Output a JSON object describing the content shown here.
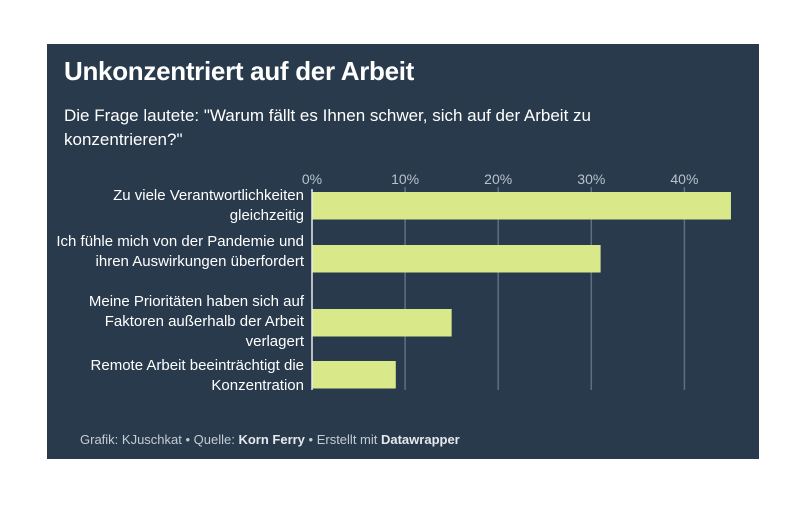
{
  "title": "Unkonzentriert auf der Arbeit",
  "subtitle": "Die Frage lautete: \"Warum fällt es Ihnen schwer, sich auf der Arbeit zu konzentrieren?\"",
  "footer": {
    "grafik_label": "Grafik: KJuschkat • Quelle: ",
    "source": "Korn Ferry",
    "made_label": " • Erstellt mit ",
    "tool": "Datawrapper"
  },
  "colors": {
    "background": "#283a4c",
    "bar": "#d9e98a",
    "grid": "#5e6f80"
  },
  "chart_data": {
    "type": "bar",
    "orientation": "horizontal",
    "title": "Unkonzentriert auf der Arbeit",
    "categories": [
      "Zu viele Verantwortlichkeiten gleichzeitig",
      "Ich fühle mich von der Pandemie und ihren Auswirkungen überfordert",
      "Meine Prioritäten haben sich auf Faktoren außerhalb der Arbeit verlagert",
      "Remote Arbeit beeinträchtigt die Konzentration"
    ],
    "values": [
      45,
      31,
      15,
      9
    ],
    "unit": "%",
    "xlim": [
      0,
      45
    ],
    "ticks": [
      0,
      10,
      20,
      30,
      40
    ],
    "tick_labels": [
      "0%",
      "10%",
      "20%",
      "30%",
      "40%"
    ],
    "axis_position": "top",
    "grid": true
  }
}
